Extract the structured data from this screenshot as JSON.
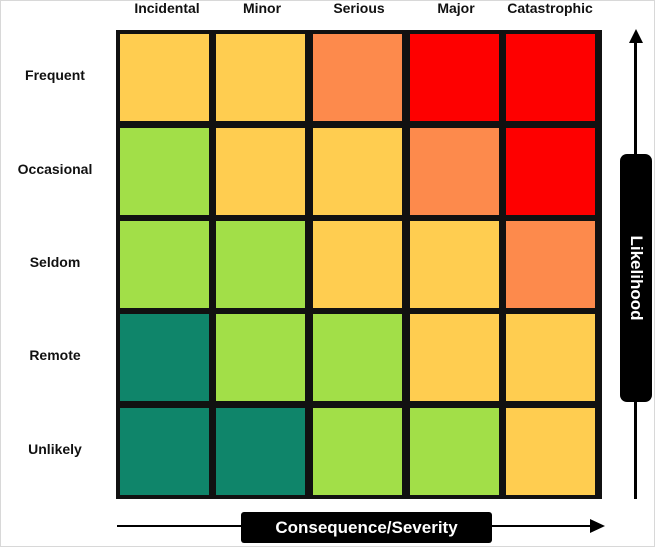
{
  "severity_levels": [
    "Incidental",
    "Minor",
    "Serious",
    "Major",
    "Catastrophic"
  ],
  "likelihood_levels": [
    "Frequent",
    "Occasional",
    "Seldom",
    "Remote",
    "Unlikely"
  ],
  "axes": {
    "y_label": "Likelihood",
    "x_label": "Consequence/Severity"
  },
  "colors": {
    "very_low": "#0f856a",
    "low": "#a2df48",
    "medium": "#ffcd50",
    "high": "#fd8a4c",
    "extreme": "#fe0000",
    "grid_line": "#111111"
  },
  "matrix": [
    [
      "medium",
      "medium",
      "high",
      "extreme",
      "extreme"
    ],
    [
      "low",
      "medium",
      "medium",
      "high",
      "extreme"
    ],
    [
      "low",
      "low",
      "medium",
      "medium",
      "high"
    ],
    [
      "very_low",
      "low",
      "low",
      "medium",
      "medium"
    ],
    [
      "very_low",
      "very_low",
      "low",
      "low",
      "medium"
    ]
  ]
}
